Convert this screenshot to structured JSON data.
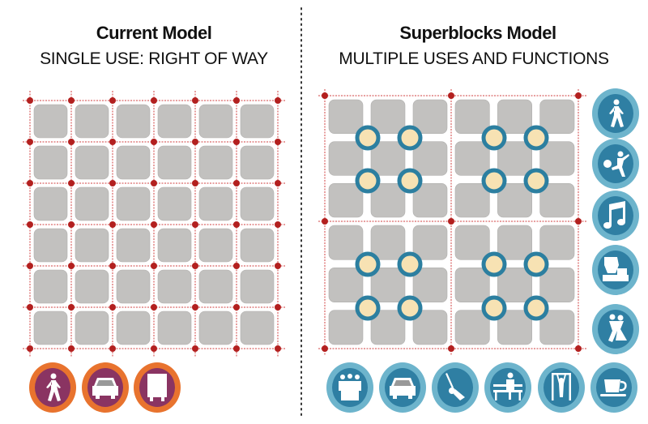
{
  "left": {
    "title": "Current Model",
    "subtitle": "SINGLE USE: RIGHT OF WAY",
    "icons": [
      "pedestrian-icon",
      "car-icon",
      "bus-icon"
    ],
    "icon_colors": {
      "ring": "#e8732e",
      "fill": "#8a3462"
    }
  },
  "right": {
    "title": "Superblocks Model",
    "subtitle": "MULTIPLE USES AND FUNCTIONS",
    "side_icons": [
      "pedestrian-icon",
      "soccer-player-icon",
      "music-note-icon",
      "market-stall-icon",
      "dancing-couple-icon"
    ],
    "bottom_icons": [
      "crowd-icon",
      "car-icon",
      "swing-icon",
      "bench-sitting-icon",
      "pull-up-bar-icon",
      "coffee-cup-icon"
    ],
    "icon_colors": {
      "ring": "#6db4cc",
      "fill": "#2f7fa3"
    }
  },
  "colors": {
    "block": "#c2c1bf",
    "street_line": "#d04040",
    "node": "#b3201f",
    "plaza_ring": "#2c7fa0",
    "plaza_fill": "#f7e2b3"
  }
}
